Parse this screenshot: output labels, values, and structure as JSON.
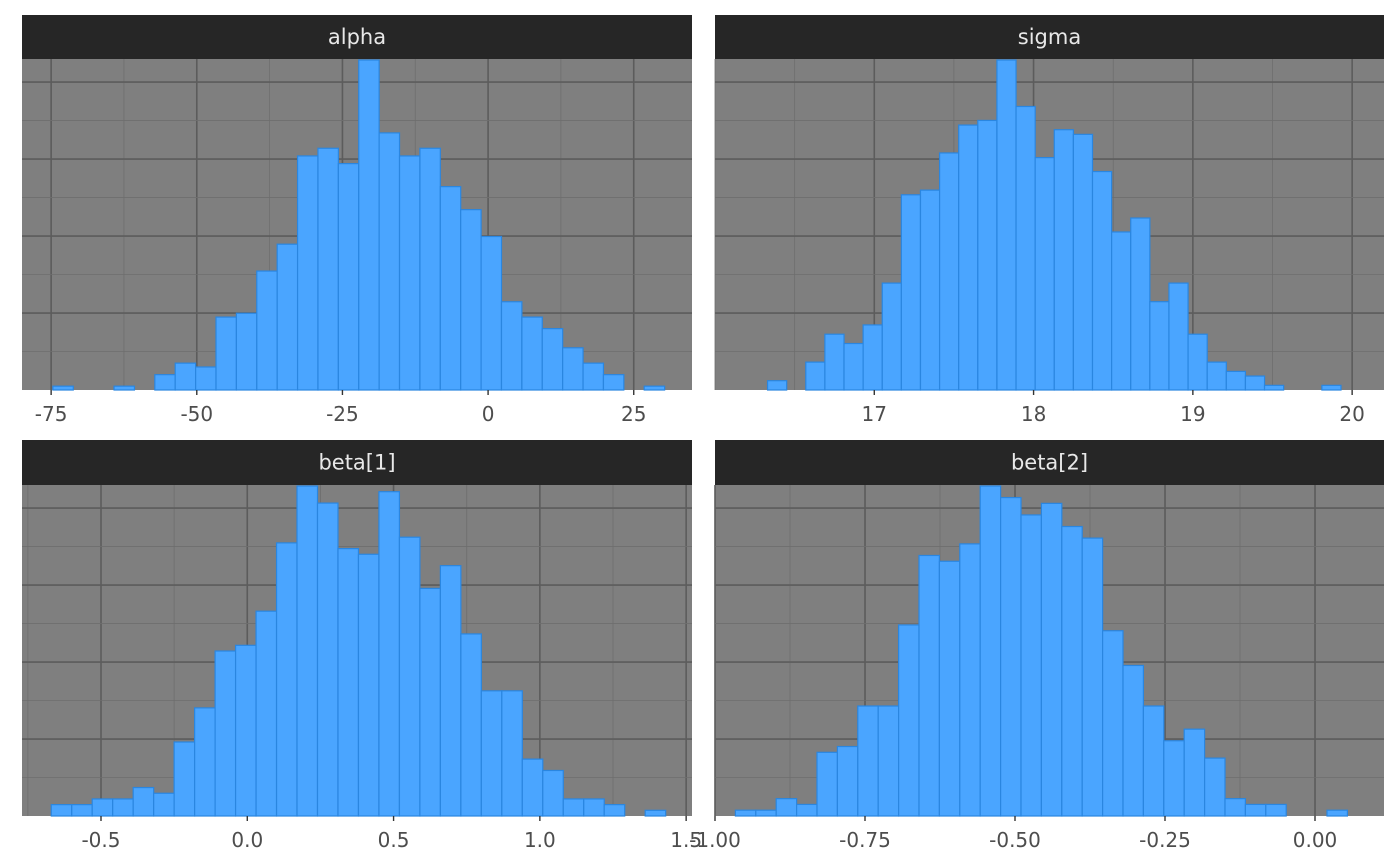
{
  "chart_data": [
    {
      "type": "bar",
      "title": "alpha",
      "xlim": [
        -80,
        35
      ],
      "xticks": [
        -75,
        -50,
        -25,
        0,
        25
      ],
      "xtick_labels": [
        "-75",
        "-50",
        "-25",
        "0",
        "25"
      ],
      "bin_start": -74.7,
      "bin_width": 3.5,
      "counts": [
        1,
        0,
        0,
        1,
        0,
        4,
        7,
        6,
        19,
        20,
        31,
        38,
        61,
        63,
        59,
        86,
        67,
        61,
        63,
        53,
        47,
        40,
        23,
        19,
        16,
        11,
        7,
        4,
        0,
        1
      ],
      "grid": true
    },
    {
      "type": "bar",
      "title": "sigma",
      "xlim": [
        16.0,
        20.2
      ],
      "xticks": [
        17,
        18,
        19,
        20
      ],
      "xtick_labels": [
        "17",
        "18",
        "19",
        "20"
      ],
      "bin_start": 16.33,
      "bin_width": 0.12,
      "counts": [
        2,
        0,
        6,
        12,
        10,
        14,
        23,
        42,
        43,
        51,
        57,
        58,
        71,
        61,
        50,
        56,
        55,
        47,
        34,
        37,
        19,
        23,
        12,
        6,
        4,
        3,
        1,
        0,
        0,
        1
      ],
      "grid": true
    },
    {
      "type": "bar",
      "title": "beta[1]",
      "xlim": [
        -0.77,
        1.52
      ],
      "xticks": [
        -0.5,
        0.0,
        0.5,
        1.0,
        1.5
      ],
      "xtick_labels": [
        "-0.5",
        "0.0",
        "0.5",
        "1.0",
        "1.5"
      ],
      "bin_start": -0.67,
      "bin_width": 0.07,
      "counts": [
        2,
        2,
        3,
        3,
        5,
        4,
        13,
        19,
        29,
        30,
        36,
        48,
        58,
        55,
        47,
        46,
        57,
        49,
        40,
        44,
        32,
        22,
        22,
        10,
        8,
        3,
        3,
        2,
        0,
        1
      ],
      "grid": true
    },
    {
      "type": "bar",
      "title": "beta[2]",
      "xlim": [
        -1.0,
        0.115
      ],
      "xticks": [
        -1.0,
        -0.75,
        -0.5,
        -0.25,
        0.0
      ],
      "xtick_labels": [
        "-1.00",
        "-0.75",
        "-0.50",
        "-0.25",
        "0.00"
      ],
      "bin_start": -0.966,
      "bin_width": 0.034,
      "counts": [
        1,
        1,
        3,
        2,
        11,
        12,
        19,
        19,
        33,
        45,
        44,
        47,
        57,
        55,
        52,
        54,
        50,
        48,
        32,
        26,
        19,
        13,
        15,
        10,
        3,
        2,
        2,
        0,
        0,
        1
      ],
      "grid": true
    }
  ]
}
